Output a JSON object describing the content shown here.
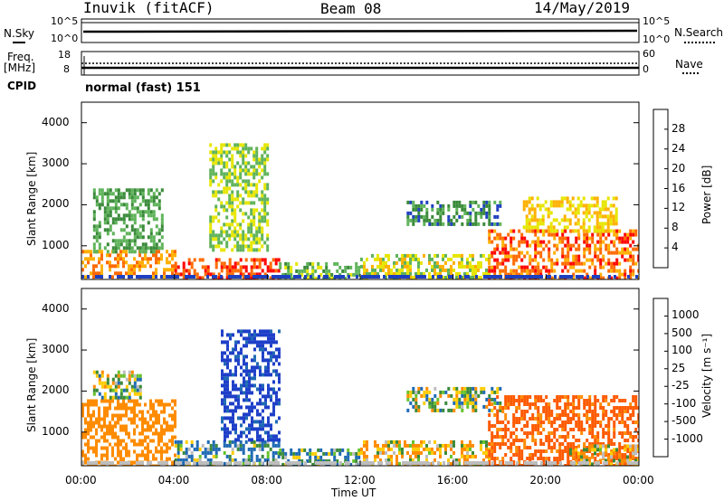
{
  "header": {
    "station": "Inuvik (fitACF)",
    "beam": "Beam 08",
    "date": "14/May/2019"
  },
  "left_labels": {
    "nsky": "N.Sky",
    "nsky_top": "10^5",
    "nsky_bottom": "10^0",
    "freq": "Freq.",
    "freq_unit": "[MHz]",
    "freq_top": "18",
    "freq_bottom": "8",
    "cpid": "CPID"
  },
  "right_labels": {
    "nsearch": "N.Search",
    "nsearch_top": "10^5",
    "nsearch_bottom": "10^0",
    "nave": "Nave",
    "nave_top": "60",
    "nave_bottom": "0"
  },
  "cpid_text": "normal (fast) 151",
  "x_axis": {
    "ticks": [
      "00:00",
      "04:00",
      "08:00",
      "12:00",
      "16:00",
      "20:00",
      "00:00"
    ],
    "label": "Time UT"
  },
  "y_axis": {
    "label": "Slant Range [km]",
    "ticks": [
      "1000",
      "2000",
      "3000",
      "4000"
    ]
  },
  "power_scale": {
    "label": "Power [dB]",
    "ticks": [
      "4",
      "8",
      "12",
      "16",
      "20",
      "24",
      "28"
    ],
    "colors": [
      "#0000ff",
      "#1e40c0",
      "#3a8a3a",
      "#5fb35a",
      "#e6e600",
      "#ffb000",
      "#ff6a00",
      "#ff0000"
    ]
  },
  "velocity_scale": {
    "label": "Velocity [m s⁻¹]",
    "ticks": [
      "1000",
      "500",
      "100",
      "25",
      "-25",
      "-100",
      "-500",
      "-1000"
    ],
    "colors": [
      "#1e3fc8",
      "#1e6ab4",
      "#3a8a3a",
      "#66c22c",
      "#bdbdbd",
      "#ffcc00",
      "#ff8c00",
      "#ff5a00",
      "#ff0000"
    ]
  },
  "chart_data": [
    {
      "type": "heatmap",
      "title": "Power [dB]",
      "xlabel": "Time UT",
      "ylabel": "Slant Range [km]",
      "xlim": [
        "00:00",
        "24:00"
      ],
      "ylim": [
        180,
        4500
      ],
      "colorbar_range": [
        0,
        30
      ],
      "regions": [
        {
          "t0": 0.0,
          "t1": 4.0,
          "r0": 200,
          "r1": 900,
          "value": 24
        },
        {
          "t0": 0.5,
          "t1": 3.5,
          "r0": 900,
          "r1": 2400,
          "value": 12
        },
        {
          "t0": 4.0,
          "t1": 8.5,
          "r0": 200,
          "r1": 700,
          "value": 28
        },
        {
          "t0": 5.5,
          "t1": 8.0,
          "r0": 900,
          "r1": 3500,
          "value": 16
        },
        {
          "t0": 8.5,
          "t1": 12.0,
          "r0": 200,
          "r1": 600,
          "value": 14
        },
        {
          "t0": 12.0,
          "t1": 17.5,
          "r0": 250,
          "r1": 800,
          "value": 18
        },
        {
          "t0": 14.0,
          "t1": 18.0,
          "r0": 1500,
          "r1": 2100,
          "value": 10
        },
        {
          "t0": 17.5,
          "t1": 24.0,
          "r0": 200,
          "r1": 1400,
          "value": 26
        },
        {
          "t0": 19.0,
          "t1": 23.0,
          "r0": 1400,
          "r1": 2200,
          "value": 20
        }
      ]
    },
    {
      "type": "heatmap",
      "title": "Velocity [m s⁻¹]",
      "xlabel": "Time UT",
      "ylabel": "Slant Range [km]",
      "xlim": [
        "00:00",
        "24:00"
      ],
      "ylim": [
        180,
        4500
      ],
      "colorbar_range": [
        -1000,
        1000
      ],
      "regions": [
        {
          "t0": 0.0,
          "t1": 4.0,
          "r0": 200,
          "r1": 1800,
          "value": -300
        },
        {
          "t0": 0.5,
          "t1": 2.5,
          "r0": 1800,
          "r1": 2500,
          "value": 0
        },
        {
          "t0": 4.0,
          "t1": 8.5,
          "r0": 200,
          "r1": 800,
          "value": 100
        },
        {
          "t0": 6.0,
          "t1": 8.5,
          "r0": 800,
          "r1": 3500,
          "value": 600
        },
        {
          "t0": 8.5,
          "t1": 12.0,
          "r0": 200,
          "r1": 600,
          "value": 80
        },
        {
          "t0": 12.0,
          "t1": 17.5,
          "r0": 250,
          "r1": 800,
          "value": -80
        },
        {
          "t0": 14.0,
          "t1": 18.0,
          "r0": 1500,
          "r1": 2100,
          "value": 0
        },
        {
          "t0": 17.5,
          "t1": 24.0,
          "r0": 200,
          "r1": 1900,
          "value": -600
        },
        {
          "t0": 21.0,
          "t1": 24.0,
          "r0": 200,
          "r1": 700,
          "value": -60
        }
      ]
    }
  ]
}
